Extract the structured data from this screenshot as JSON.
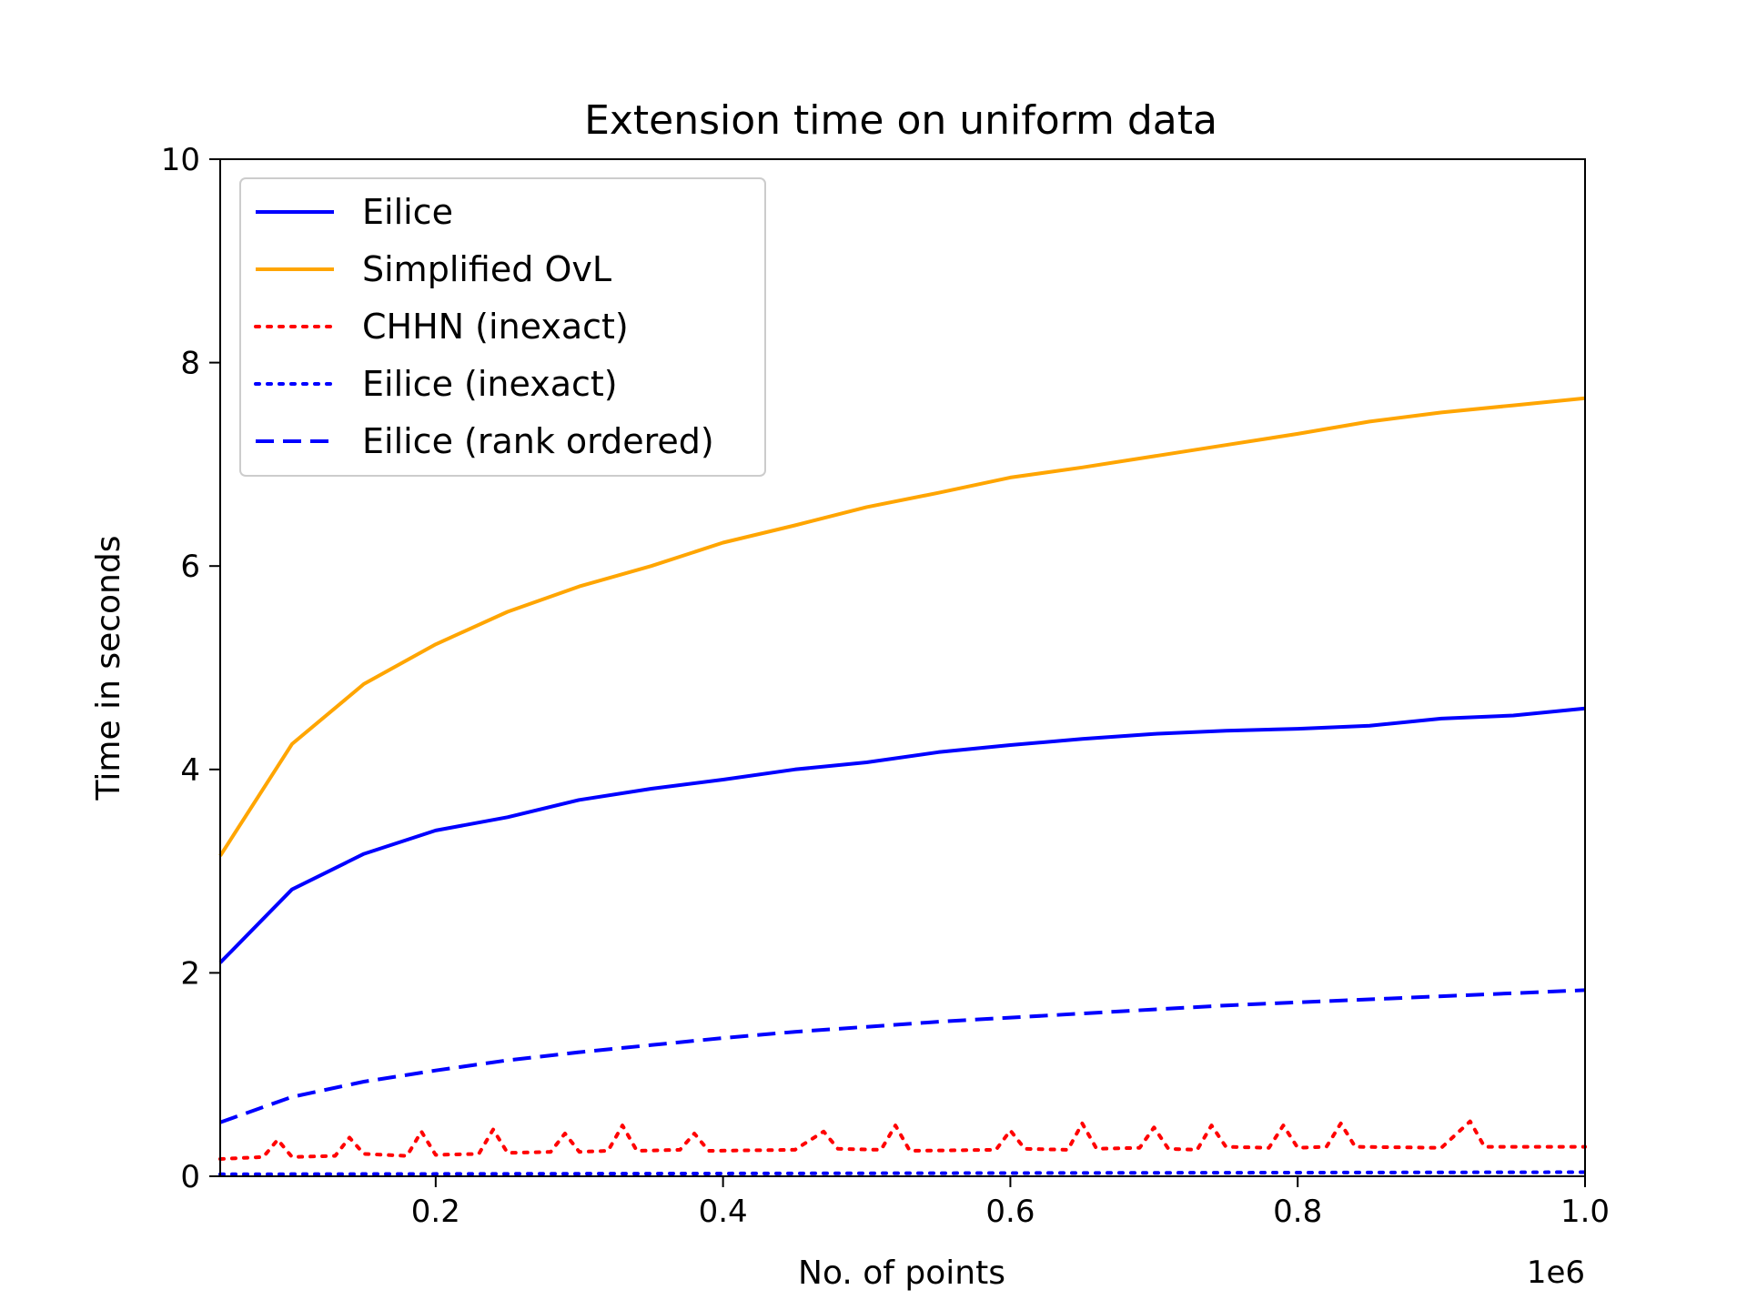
{
  "chart_data": {
    "type": "line",
    "title": "Extension time on uniform data",
    "xlabel": "No. of points",
    "ylabel": "Time in seconds",
    "x_offset_label": "1e6",
    "xlim": [
      50000,
      1000000
    ],
    "ylim": [
      0,
      10
    ],
    "x_ticks": [
      200000,
      400000,
      600000,
      800000,
      1000000
    ],
    "x_tick_labels": [
      "0.2",
      "0.4",
      "0.6",
      "0.8",
      "1.0"
    ],
    "y_ticks": [
      0,
      2,
      4,
      6,
      8,
      10
    ],
    "y_tick_labels": [
      "0",
      "2",
      "4",
      "6",
      "8",
      "10"
    ],
    "grid": false,
    "legend_position": "top-left",
    "series": [
      {
        "name": "Eilice",
        "color": "#0000ff",
        "style": "solid",
        "x": [
          50000,
          100000,
          150000,
          200000,
          250000,
          300000,
          350000,
          400000,
          450000,
          500000,
          550000,
          600000,
          650000,
          700000,
          750000,
          800000,
          850000,
          900000,
          950000,
          1000000
        ],
        "y": [
          2.1,
          2.82,
          3.17,
          3.4,
          3.53,
          3.7,
          3.81,
          3.9,
          4.0,
          4.07,
          4.17,
          4.24,
          4.3,
          4.35,
          4.38,
          4.4,
          4.43,
          4.5,
          4.53,
          4.6
        ]
      },
      {
        "name": "Simplified OvL",
        "color": "#ffa500",
        "style": "solid",
        "x": [
          50000,
          100000,
          150000,
          200000,
          250000,
          300000,
          350000,
          400000,
          450000,
          500000,
          550000,
          600000,
          650000,
          700000,
          750000,
          800000,
          850000,
          900000,
          950000,
          1000000
        ],
        "y": [
          3.15,
          4.25,
          4.84,
          5.23,
          5.55,
          5.8,
          6.0,
          6.23,
          6.4,
          6.58,
          6.72,
          6.87,
          6.97,
          7.08,
          7.19,
          7.3,
          7.42,
          7.51,
          7.58,
          7.65
        ]
      },
      {
        "name": "CHHN (inexact)",
        "color": "#ff0000",
        "style": "dotted",
        "x": [
          50000,
          80000,
          90000,
          100000,
          130000,
          140000,
          150000,
          180000,
          190000,
          200000,
          230000,
          240000,
          250000,
          280000,
          290000,
          300000,
          320000,
          330000,
          340000,
          370000,
          380000,
          390000,
          450000,
          470000,
          480000,
          510000,
          520000,
          530000,
          590000,
          600000,
          610000,
          640000,
          650000,
          660000,
          690000,
          700000,
          710000,
          730000,
          740000,
          750000,
          780000,
          790000,
          800000,
          820000,
          830000,
          840000,
          900000,
          920000,
          930000,
          1000000
        ],
        "y": [
          0.17,
          0.19,
          0.36,
          0.19,
          0.2,
          0.38,
          0.22,
          0.2,
          0.44,
          0.21,
          0.22,
          0.46,
          0.23,
          0.24,
          0.42,
          0.24,
          0.25,
          0.5,
          0.25,
          0.26,
          0.42,
          0.25,
          0.26,
          0.44,
          0.27,
          0.26,
          0.5,
          0.25,
          0.26,
          0.45,
          0.27,
          0.26,
          0.52,
          0.27,
          0.28,
          0.48,
          0.27,
          0.26,
          0.5,
          0.29,
          0.28,
          0.5,
          0.28,
          0.29,
          0.52,
          0.29,
          0.28,
          0.54,
          0.29,
          0.29
        ]
      },
      {
        "name": "Eilice (inexact)",
        "color": "#0000ff",
        "style": "dotted",
        "x": [
          50000,
          1000000
        ],
        "y": [
          0.02,
          0.04
        ]
      },
      {
        "name": "Eilice (rank ordered)",
        "color": "#0000ff",
        "style": "dashed",
        "x": [
          50000,
          100000,
          150000,
          200000,
          250000,
          300000,
          350000,
          400000,
          450000,
          500000,
          550000,
          600000,
          650000,
          700000,
          750000,
          800000,
          850000,
          900000,
          950000,
          1000000
        ],
        "y": [
          0.53,
          0.78,
          0.93,
          1.04,
          1.14,
          1.22,
          1.29,
          1.36,
          1.42,
          1.47,
          1.52,
          1.56,
          1.6,
          1.64,
          1.68,
          1.71,
          1.74,
          1.77,
          1.8,
          1.83
        ]
      }
    ]
  }
}
